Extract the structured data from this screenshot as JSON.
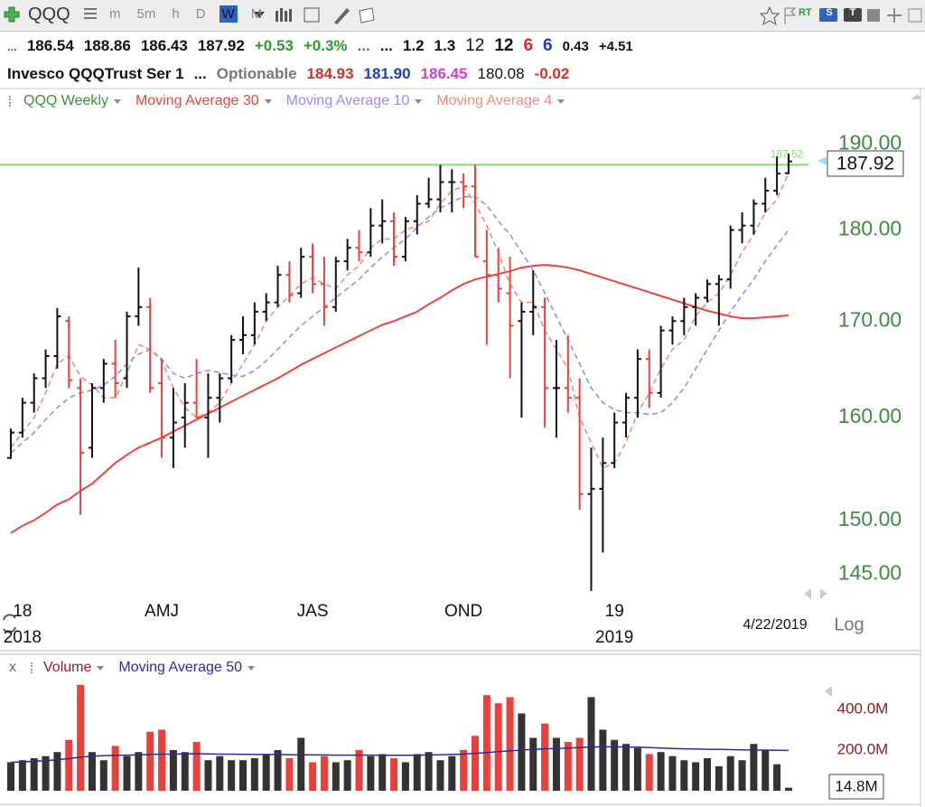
{
  "chart_data": {
    "type": "ohlc",
    "toolbar": {
      "symbol": "QQQ",
      "intervals": [
        "m",
        "5m",
        "h",
        "D",
        "W",
        "M"
      ],
      "active_interval": "W",
      "badges": [
        "RT",
        "S",
        "T"
      ]
    },
    "quote_rows": [
      [
        {
          "text": "...",
          "color": "#d32f2f",
          "weight": "bold",
          "size": 13
        },
        {
          "text": "186.54",
          "color": "#111111",
          "weight": "bold",
          "size": 17
        },
        {
          "text": "188.86",
          "color": "#111111",
          "weight": "bold",
          "size": 17
        },
        {
          "text": "186.43",
          "color": "#111111",
          "weight": "bold",
          "size": 17
        },
        {
          "text": "187.92",
          "color": "#111111",
          "weight": "bold",
          "size": 17
        },
        {
          "text": "+0.53",
          "color": "#2e9a2e",
          "weight": "bold",
          "size": 17
        },
        {
          "text": "+0.3%",
          "color": "#2e9a2e",
          "weight": "bold",
          "size": 17
        },
        {
          "text": "...",
          "color": "#2e9a2e",
          "weight": "bold",
          "size": 17
        },
        {
          "text": "...",
          "color": "#111111",
          "weight": "bold",
          "size": 17
        },
        {
          "text": "1.2",
          "color": "#111111",
          "weight": "bold",
          "size": 17
        },
        {
          "text": "1.3",
          "color": "#111111",
          "weight": "bold",
          "size": 17
        },
        {
          "text": "12",
          "color": "#111111",
          "weight": "normal",
          "size": 19
        },
        {
          "text": "12",
          "color": "#111111",
          "weight": "bold",
          "size": 19
        },
        {
          "text": "6",
          "color": "#d32f2f",
          "weight": "bold",
          "size": 19
        },
        {
          "text": "6",
          "color": "#1a3fbf",
          "weight": "bold",
          "size": 19
        },
        {
          "text": "0.43",
          "color": "#111111",
          "weight": "bold",
          "size": 15
        },
        {
          "text": "+4.51",
          "color": "#111111",
          "weight": "bold",
          "size": 15
        }
      ],
      [
        {
          "text": "Invesco QQQTrust Ser 1",
          "color": "#111111",
          "weight": "bold",
          "size": 17
        },
        {
          "text": "...",
          "color": "#111111",
          "weight": "bold",
          "size": 17
        },
        {
          "text": "Optionable",
          "color": "#777777",
          "weight": "bold",
          "size": 17
        },
        {
          "text": "184.93",
          "color": "#d32f2f",
          "weight": "bold",
          "size": 17
        },
        {
          "text": "181.90",
          "color": "#1a3fbf",
          "weight": "bold",
          "size": 17
        },
        {
          "text": "186.45",
          "color": "#d63ad6",
          "weight": "bold",
          "size": 17
        },
        {
          "text": "180.08",
          "color": "#111111",
          "weight": "normal",
          "size": 17
        },
        {
          "text": "-0.02",
          "color": "#d32f2f",
          "weight": "bold",
          "size": 17
        }
      ]
    ],
    "categories": [
      null,
      "18",
      null,
      null,
      null,
      null,
      null,
      null,
      null,
      null,
      null,
      null,
      null,
      "AMJ",
      null,
      null,
      null,
      null,
      null,
      null,
      null,
      null,
      null,
      null,
      null,
      null,
      "JAS",
      null,
      null,
      null,
      null,
      null,
      null,
      null,
      null,
      null,
      null,
      null,
      null,
      "OND",
      null,
      null,
      null,
      null,
      null,
      null,
      null,
      null,
      null,
      null,
      null,
      null,
      "19",
      null,
      null,
      null,
      null,
      null,
      null,
      null,
      null,
      null,
      null,
      null,
      null,
      null,
      null,
      null
    ],
    "years": [
      null,
      "2018",
      null,
      null,
      null,
      null,
      null,
      null,
      null,
      null,
      null,
      null,
      null,
      null,
      null,
      null,
      null,
      null,
      null,
      null,
      null,
      null,
      null,
      null,
      null,
      null,
      null,
      null,
      null,
      null,
      null,
      null,
      null,
      null,
      null,
      null,
      null,
      null,
      null,
      null,
      null,
      null,
      null,
      null,
      null,
      null,
      null,
      null,
      null,
      null,
      null,
      null,
      "2019",
      null,
      null,
      null,
      null,
      null,
      null,
      null,
      null,
      null,
      null,
      null,
      null,
      null,
      null,
      null
    ],
    "date_label": "4/22/2019",
    "scale_label": "Log",
    "log_scale": true,
    "ylim": [
      143,
      196.5
    ],
    "yticks": [
      {
        "value": 145,
        "label": "145.00"
      },
      {
        "value": 150,
        "label": "150.00"
      },
      {
        "value": 160,
        "label": "160.00"
      },
      {
        "value": 170,
        "label": "170.00"
      },
      {
        "value": 180,
        "label": "180.00"
      },
      {
        "value": 190,
        "label": "190.00"
      }
    ],
    "axis_color": "#3d8b3d",
    "reference_line": {
      "value": 187.52,
      "color": "#7ee06a"
    },
    "series": [
      {
        "name": "QQQ Weekly",
        "color": "#3e8e3e",
        "up_color": "#111111",
        "down_color": "#e8413c",
        "open": [
          156,
          158.5,
          161.5,
          164,
          166.3,
          170,
          163,
          157,
          163,
          165.5,
          164,
          170.5,
          171.5,
          163.5,
          158,
          160,
          161.5,
          160,
          162,
          164,
          168,
          168.5,
          171,
          172,
          175,
          173,
          177,
          174,
          171.5,
          176.5,
          178,
          177.5,
          180.5,
          181,
          177,
          181,
          183,
          183.5,
          185.5,
          185.5,
          185,
          176.5,
          175,
          173,
          170,
          171,
          171.5,
          163,
          163,
          162,
          152.5,
          153,
          155.5,
          159.5,
          162,
          166,
          162.5,
          169,
          170,
          171.5,
          172.5,
          174,
          174.5,
          180,
          180.5,
          183,
          184.5,
          186.54
        ],
        "high": [
          158.9,
          162,
          164.5,
          167,
          171.4,
          170.5,
          164,
          163.5,
          166,
          168,
          171,
          175.8,
          172.5,
          166,
          163,
          163.5,
          166,
          164.5,
          164.5,
          168.5,
          170.5,
          172,
          173,
          176,
          176.5,
          178,
          178.5,
          177,
          177,
          179,
          180,
          182.5,
          183.5,
          182,
          181.5,
          184,
          186,
          187.5,
          187,
          186.5,
          187.5,
          180,
          178,
          177,
          172,
          175.5,
          172.5,
          168,
          168.5,
          164,
          157,
          158,
          160.5,
          162.5,
          167,
          167,
          169.5,
          170.5,
          172.5,
          173,
          174.5,
          175,
          180.5,
          182,
          183.5,
          186,
          188.5,
          188.86
        ],
        "low": [
          155.9,
          158,
          160.5,
          163,
          165,
          163,
          150.5,
          156,
          161.5,
          162,
          163,
          169.5,
          162.5,
          156,
          155,
          157,
          160,
          156,
          159.5,
          163.5,
          166.5,
          167.5,
          170,
          171.5,
          172,
          172.5,
          173,
          169.5,
          171,
          175.5,
          176.5,
          177,
          178.5,
          176,
          176.5,
          179.5,
          182.5,
          182,
          182,
          182.5,
          177,
          167.5,
          172,
          164,
          160,
          168.5,
          159,
          158,
          160.5,
          151,
          143.5,
          147,
          155,
          158,
          160,
          161,
          162,
          167.5,
          168.5,
          169.5,
          172,
          169.5,
          173.5,
          178.5,
          179.5,
          182,
          184,
          186.43
        ],
        "close": [
          158.5,
          161.5,
          164,
          166.3,
          170.5,
          163.8,
          156.5,
          163,
          165.5,
          163.5,
          170.5,
          171.5,
          163,
          158,
          159.5,
          161.5,
          160,
          162,
          164,
          168,
          168.5,
          171,
          172,
          175,
          172.8,
          177,
          174,
          171.5,
          176.5,
          178,
          177.5,
          180.5,
          181,
          177,
          181,
          183,
          183.5,
          185.5,
          185.5,
          185,
          177,
          175,
          173.5,
          169.5,
          171,
          171.5,
          163,
          163,
          162,
          152.5,
          153,
          155.5,
          159.5,
          162,
          166,
          162.5,
          169,
          170,
          171.5,
          172.5,
          174,
          174.5,
          180,
          180.5,
          183,
          184.5,
          186.5,
          187.92
        ]
      },
      {
        "name": "Moving Average 30",
        "color": "#e8453c",
        "style": "solid",
        "values": [
          148.8,
          149.5,
          150,
          150.7,
          151.5,
          152,
          152.8,
          153.5,
          154.5,
          155.5,
          156.3,
          157,
          157.5,
          158,
          158.6,
          159.2,
          159.8,
          160.4,
          161,
          161.6,
          162.2,
          162.8,
          163.4,
          164,
          164.7,
          165.4,
          166,
          166.6,
          167.2,
          167.8,
          168.4,
          169,
          169.6,
          170,
          170.5,
          171,
          171.8,
          172.5,
          173.3,
          174,
          174.5,
          174.8,
          175.1,
          175.4,
          175.8,
          176,
          176.1,
          176,
          175.8,
          175.5,
          175.1,
          174.7,
          174.3,
          173.9,
          173.5,
          173.1,
          172.7,
          172.3,
          171.9,
          171.5,
          171.1,
          170.8,
          170.5,
          170.3,
          170.3,
          170.4,
          170.5,
          170.6
        ]
      },
      {
        "name": "Moving Average 10",
        "color": "#8f8ff0",
        "style": "dashed",
        "values": [
          156.5,
          157.5,
          158.5,
          159.8,
          161,
          162,
          162.5,
          162.8,
          163.3,
          164.2,
          165.5,
          166.5,
          167,
          166,
          164.5,
          164,
          164.5,
          164.8,
          164.6,
          164.3,
          164.2,
          164.8,
          165.8,
          167,
          168.3,
          169.5,
          170.5,
          171.5,
          172.5,
          173.5,
          174.5,
          175.8,
          177,
          178,
          179,
          180.3,
          181.5,
          182.5,
          183.2,
          183.8,
          183.8,
          182.8,
          181,
          179.5,
          177.5,
          175.5,
          173,
          170.5,
          168,
          165.5,
          163,
          161.5,
          160.8,
          160.5,
          160.5,
          160.3,
          160.5,
          161.5,
          163,
          165,
          167,
          169,
          171,
          172.8,
          174.5,
          176.5,
          178.3,
          180
        ]
      },
      {
        "name": "Moving Average 4",
        "color": "#f08a85",
        "style": "dashed",
        "values": [
          157,
          158.5,
          160,
          162.5,
          165.5,
          166.3,
          164.2,
          163.3,
          162,
          162,
          164.5,
          167.5,
          167,
          165.8,
          163,
          161,
          160,
          160.5,
          161.5,
          163.5,
          165.5,
          167.5,
          170,
          171.5,
          172.7,
          174,
          174.7,
          174,
          173.5,
          175,
          176,
          178,
          179,
          179,
          180,
          180.5,
          181,
          183,
          184.5,
          185,
          183,
          180.5,
          177.5,
          174,
          172,
          172,
          169,
          167,
          165,
          160,
          157.5,
          155,
          155.5,
          157.5,
          160.5,
          162.5,
          165,
          167,
          168,
          170.5,
          172,
          173,
          175,
          177.5,
          179.5,
          182,
          183.5,
          186.5
        ]
      }
    ],
    "volume": {
      "name": "Volume",
      "color": "#8b1a1a",
      "values": [
        140,
        150,
        160,
        170,
        190,
        250,
        520,
        190,
        150,
        220,
        170,
        190,
        290,
        300,
        200,
        190,
        240,
        150,
        170,
        150,
        150,
        160,
        180,
        200,
        160,
        260,
        140,
        170,
        140,
        150,
        200,
        170,
        180,
        160,
        140,
        180,
        190,
        150,
        170,
        200,
        270,
        470,
        430,
        460,
        380,
        260,
        330,
        260,
        240,
        260,
        460,
        300,
        250,
        230,
        210,
        180,
        190,
        170,
        150,
        140,
        160,
        120,
        170,
        150,
        230,
        200,
        130,
        14.8
      ],
      "value_labels": [
        null,
        null,
        null,
        null,
        null,
        null,
        null,
        null,
        null,
        null,
        null,
        null,
        null,
        null,
        null,
        null,
        null,
        null,
        null,
        null,
        null,
        null,
        null,
        null,
        null,
        null,
        null,
        null,
        null,
        null,
        null,
        null,
        null,
        null,
        null,
        null,
        null,
        null,
        null,
        null,
        null,
        null,
        null,
        null,
        null,
        null,
        null,
        null,
        null,
        null,
        null,
        null,
        null,
        null,
        null,
        null,
        null,
        null,
        null,
        null,
        null,
        null,
        null,
        null,
        null,
        null,
        null,
        "14.8M"
      ],
      "ylim": [
        0,
        533
      ],
      "yticks": [
        {
          "value": 200,
          "label": "200.0M"
        },
        {
          "value": 400,
          "label": "400.0M"
        }
      ],
      "close_label": "x",
      "average": {
        "name": "Moving Average 50",
        "color": "#2b2b9c",
        "values": [
          140,
          142,
          145,
          148,
          152,
          158,
          165,
          170,
          172,
          174,
          175,
          176,
          178,
          180,
          180,
          181,
          182,
          181,
          180,
          180,
          179,
          178,
          178,
          178,
          177,
          177,
          176,
          176,
          175,
          175,
          175,
          175,
          174,
          174,
          174,
          175,
          176,
          177,
          178,
          180,
          184,
          188,
          192,
          196,
          200,
          203,
          206,
          208,
          210,
          212,
          215,
          216,
          216,
          215,
          214,
          212,
          210,
          208,
          206,
          205,
          204,
          203,
          202,
          201,
          200,
          200,
          199,
          198
        ]
      }
    }
  }
}
